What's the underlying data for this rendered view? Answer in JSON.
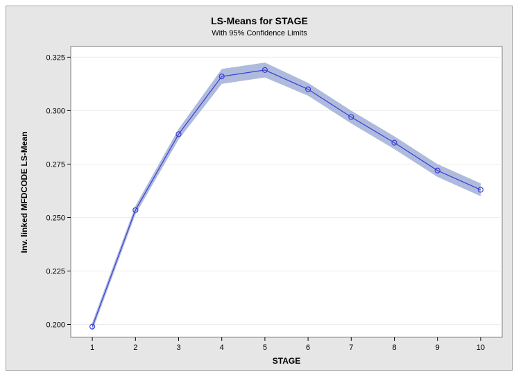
{
  "chart_data": {
    "type": "line",
    "title": "LS-Means for STAGE",
    "subtitle": "With 95% Confidence Limits",
    "xlabel": "STAGE",
    "ylabel": "Inv. linked MFDCODE LS-Mean",
    "x": [
      1,
      2,
      3,
      4,
      5,
      6,
      7,
      8,
      9,
      10
    ],
    "series": [
      {
        "values": [
          0.199,
          0.2535,
          0.289,
          0.316,
          0.319,
          0.31,
          0.297,
          0.285,
          0.272,
          0.263
        ],
        "lower": [
          0.197,
          0.2515,
          0.2865,
          0.3125,
          0.3155,
          0.307,
          0.294,
          0.282,
          0.269,
          0.26
        ],
        "upper": [
          0.201,
          0.2555,
          0.2915,
          0.3195,
          0.3225,
          0.313,
          0.3,
          0.288,
          0.275,
          0.266
        ]
      }
    ],
    "xticks": [
      "1",
      "2",
      "3",
      "4",
      "5",
      "6",
      "7",
      "8",
      "9",
      "10"
    ],
    "yticks": [
      "0.200",
      "0.225",
      "0.250",
      "0.275",
      "0.300",
      "0.325"
    ],
    "ylim": [
      0.194,
      0.33
    ],
    "xlim": [
      0.5,
      10.5
    ],
    "grid": true,
    "colors": {
      "line": "#3b3bd4",
      "band": "#aebbdc",
      "background": "#e6e6e6",
      "plot_area": "#ffffff",
      "grid": "#ececec"
    }
  }
}
